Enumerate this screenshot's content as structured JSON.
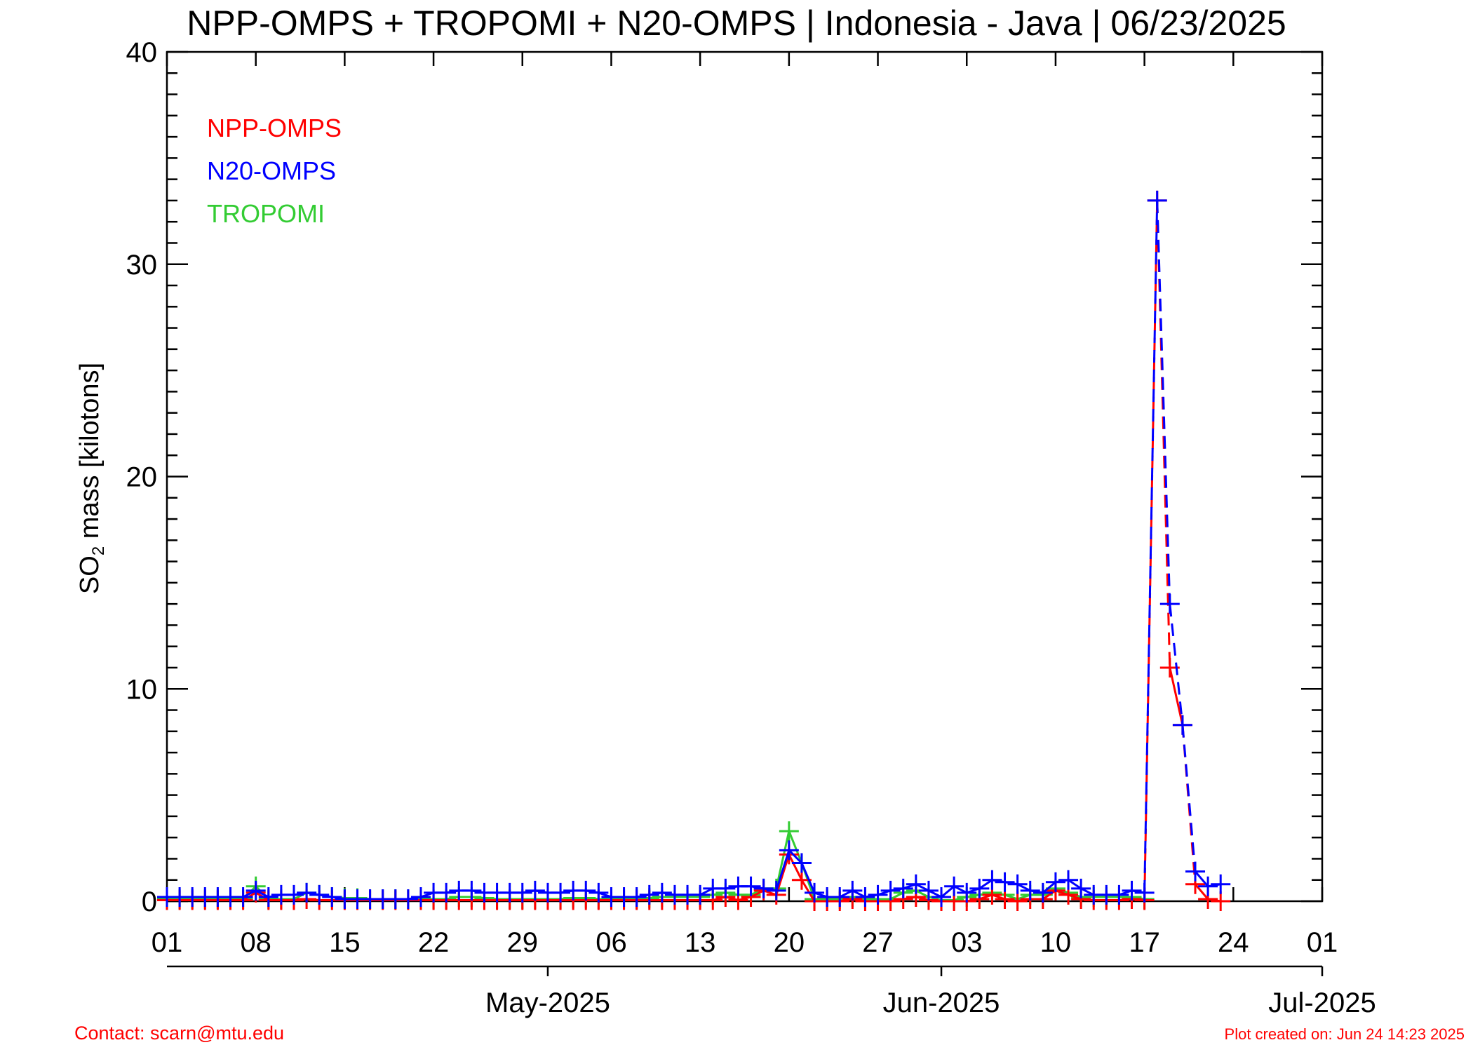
{
  "chart_data": {
    "type": "line",
    "title": "NPP-OMPS + TROPOMI + N20-OMPS | Indonesia - Java | 06/23/2025",
    "ylabel_main": "SO",
    "ylabel_sub": "2",
    "ylabel_rest": " mass [kilotons]",
    "ylim": [
      0,
      40
    ],
    "yticks": [
      "0",
      "10",
      "20",
      "30",
      "40"
    ],
    "xlim": [
      "2025-04-01",
      "2025-07-01"
    ],
    "xtick_labels": [
      "01",
      "08",
      "15",
      "22",
      "29",
      "06",
      "13",
      "20",
      "27",
      "03",
      "10",
      "17",
      "24",
      "01"
    ],
    "month_labels": [
      "May-2025",
      "Jun-2025",
      "Jul-2025"
    ],
    "legend_placement": "top-left",
    "grid": false,
    "x_start": "2025-04-01",
    "x_end": "2025-06-23",
    "series": [
      {
        "name": "NPP-OMPS",
        "color": "#ff0000",
        "values": [
          0.05,
          0.05,
          0.05,
          0.05,
          0.05,
          0.05,
          0.05,
          0.4,
          0.05,
          0.05,
          0.05,
          0.1,
          0.05,
          0.05,
          0.05,
          0.05,
          0.05,
          0.05,
          0.05,
          0.05,
          0.05,
          0.05,
          0.05,
          0.05,
          0.05,
          0.05,
          0.05,
          0.05,
          0.05,
          0.05,
          0.05,
          0.05,
          0.05,
          0.05,
          0.05,
          0.05,
          0.05,
          0.05,
          0.05,
          0.05,
          0.05,
          0.05,
          0.05,
          0.05,
          0.2,
          0.05,
          0.2,
          0.5,
          0.3,
          2.2,
          1.0,
          0.0,
          0.0,
          0.0,
          0.1,
          0.0,
          0.0,
          0.0,
          0.1,
          0.2,
          0.05,
          0.0,
          0.0,
          0.0,
          0.1,
          0.3,
          0.1,
          0.0,
          0.1,
          0.1,
          0.5,
          0.3,
          0.1,
          0.05,
          0.05,
          0.05,
          0.1,
          0.05,
          33.0,
          11.0,
          8.3,
          0.8,
          0.1,
          0.0
        ]
      },
      {
        "name": "N20-OMPS",
        "color": "#0000ff",
        "values": [
          0.2,
          0.2,
          0.2,
          0.2,
          0.2,
          0.2,
          0.2,
          0.5,
          0.2,
          0.3,
          0.3,
          0.4,
          0.3,
          0.2,
          0.1,
          0.1,
          0.1,
          0.1,
          0.1,
          0.1,
          0.2,
          0.4,
          0.4,
          0.5,
          0.5,
          0.4,
          0.4,
          0.4,
          0.4,
          0.5,
          0.4,
          0.4,
          0.5,
          0.5,
          0.4,
          0.2,
          0.2,
          0.2,
          0.3,
          0.4,
          0.3,
          0.3,
          0.3,
          0.6,
          0.6,
          0.7,
          0.7,
          0.6,
          0.5,
          2.4,
          1.8,
          0.4,
          0.2,
          0.2,
          0.5,
          0.2,
          0.3,
          0.5,
          0.6,
          0.8,
          0.5,
          0.2,
          0.7,
          0.4,
          0.6,
          1.0,
          0.9,
          0.8,
          0.5,
          0.4,
          0.9,
          1.0,
          0.6,
          0.3,
          0.3,
          0.3,
          0.5,
          0.4,
          33.0,
          14.0,
          8.3,
          1.4,
          0.7,
          0.8
        ]
      },
      {
        "name": "TROPOMI",
        "color": "#33cc33",
        "values": [
          0.1,
          0.1,
          0.1,
          0.1,
          0.1,
          0.1,
          0.1,
          0.7,
          0.1,
          0.1,
          0.1,
          0.4,
          0.3,
          0.2,
          0.15,
          0.15,
          0.1,
          0.1,
          0.1,
          0.1,
          0.1,
          0.1,
          0.1,
          0.2,
          0.2,
          0.15,
          0.1,
          0.1,
          0.1,
          0.1,
          0.1,
          0.1,
          0.15,
          0.15,
          0.1,
          0.1,
          0.1,
          0.1,
          0.15,
          0.2,
          0.2,
          0.2,
          0.2,
          0.3,
          0.4,
          0.3,
          0.3,
          0.6,
          0.6,
          3.3,
          1.8,
          0.1,
          0.1,
          0.1,
          0.2,
          0.1,
          0.1,
          0.1,
          0.4,
          0.5,
          0.2,
          0.05,
          0.05,
          0.2,
          0.3,
          0.4,
          0.3,
          0.1,
          0.3,
          0.3,
          0.6,
          0.4,
          0.2,
          0.2,
          0.2,
          0.2,
          0.2,
          0.1,
          null,
          null,
          null,
          null,
          null,
          null
        ]
      }
    ]
  },
  "footer": {
    "contact": "Contact: scarn@mtu.edu",
    "created": "Plot created on: Jun 24 14:23 2025"
  }
}
